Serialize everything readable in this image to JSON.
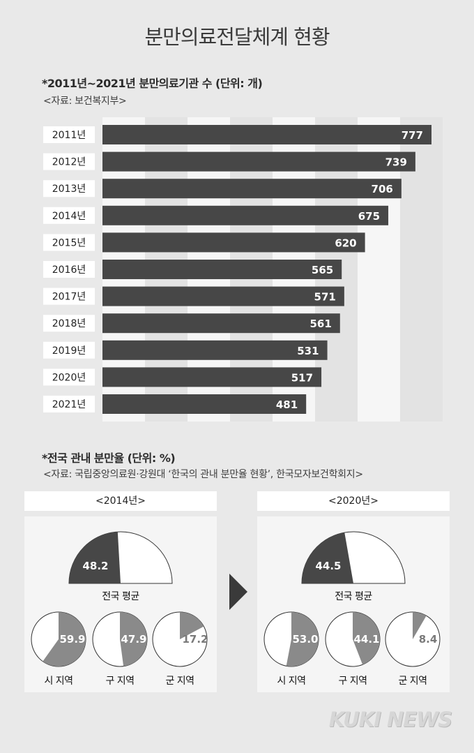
{
  "header": {
    "title": "분만의료전달체계 현황"
  },
  "chart_data": [
    {
      "type": "bar",
      "title": "*2011년~2021년 분만의료기관 수 (단위: 개)",
      "source": "<자료: 보건복지부>",
      "categories": [
        "2011년",
        "2012년",
        "2013년",
        "2014년",
        "2015년",
        "2016년",
        "2017년",
        "2018년",
        "2019년",
        "2020년",
        "2021년"
      ],
      "values": [
        777,
        739,
        706,
        675,
        620,
        565,
        571,
        561,
        531,
        517,
        481
      ],
      "orientation": "horizontal",
      "grid": true,
      "bar_color": "#474747"
    },
    {
      "type": "pie",
      "title": "*전국 관내 분만율 (단위: %)",
      "source": "<자료: 국립중앙의료원·강원대 ‘한국의 관내 분만율 현황’, 한국모자보건학회지>",
      "groups": [
        {
          "period": "<2014년>",
          "national": {
            "label": "전국 평균",
            "value": 48.2,
            "value_text": "48.2"
          },
          "regions": [
            {
              "label": "시 지역",
              "value": 59.9,
              "value_text": "59.9"
            },
            {
              "label": "구 지역",
              "value": 47.9,
              "value_text": "47.9"
            },
            {
              "label": "군 지역",
              "value": 17.2,
              "value_text": "17.2"
            }
          ]
        },
        {
          "period": "<2020년>",
          "national": {
            "label": "전국 평균",
            "value": 44.5,
            "value_text": "44.5"
          },
          "regions": [
            {
              "label": "시 지역",
              "value": 53.0,
              "value_text": "53.0"
            },
            {
              "label": "구 지역",
              "value": 44.1,
              "value_text": "44.1"
            },
            {
              "label": "군 지역",
              "value": 8.4,
              "value_text": "8.4"
            }
          ]
        }
      ],
      "colors": {
        "national": "#474747",
        "region": "#8a8a8a",
        "empty": "#ffffff"
      }
    }
  ],
  "footer": {
    "brand": "KUKI NEWS"
  }
}
